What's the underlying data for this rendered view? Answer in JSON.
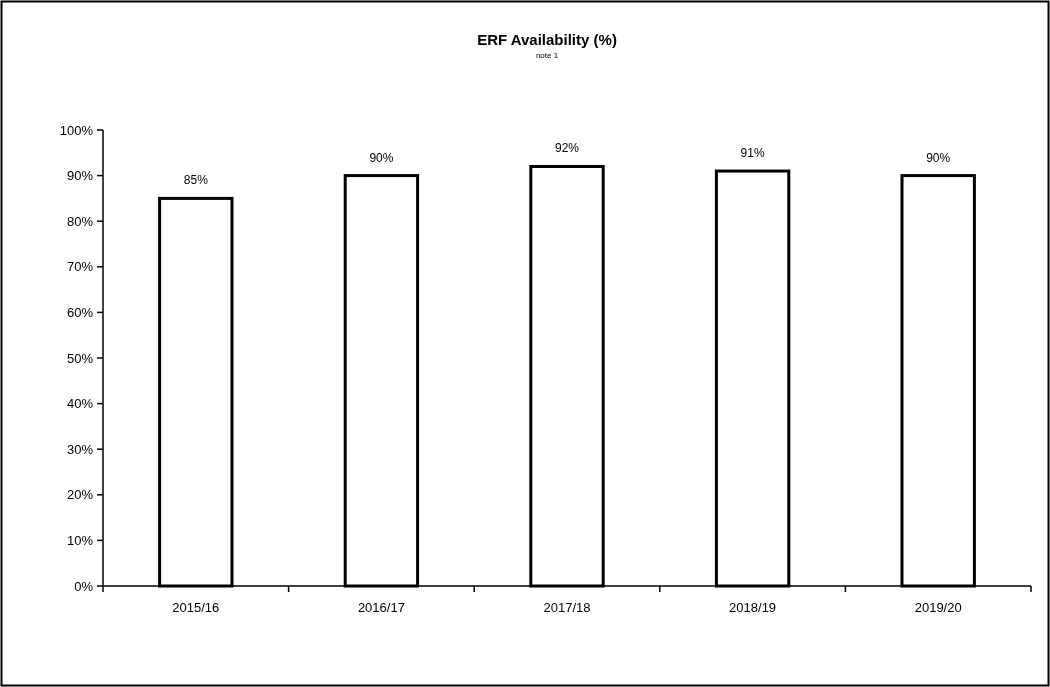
{
  "chart_data": {
    "type": "bar",
    "title": "ERF Availability (%)",
    "subtitle": "note 1",
    "categories": [
      "2015/16",
      "2016/17",
      "2017/18",
      "2018/19",
      "2019/20"
    ],
    "values": [
      85,
      90,
      92,
      91,
      90
    ],
    "color": "#ffffff",
    "ylim": [
      0,
      100
    ],
    "yticks": [
      {
        "value": 0,
        "label": "0%"
      },
      {
        "value": 10,
        "label": "10%"
      },
      {
        "value": 20,
        "label": "20%"
      },
      {
        "value": 30,
        "label": "30%"
      },
      {
        "value": 40,
        "label": "40%"
      },
      {
        "value": 50,
        "label": "50%"
      },
      {
        "value": 60,
        "label": "60%"
      },
      {
        "value": 70,
        "label": "70%"
      },
      {
        "value": 80,
        "label": "80%"
      },
      {
        "value": 90,
        "label": "90%"
      },
      {
        "value": 100,
        "label": "100%"
      }
    ],
    "value_labels": [
      "85%",
      "90%",
      "92%",
      "91%",
      "90%"
    ],
    "grid": false
  }
}
